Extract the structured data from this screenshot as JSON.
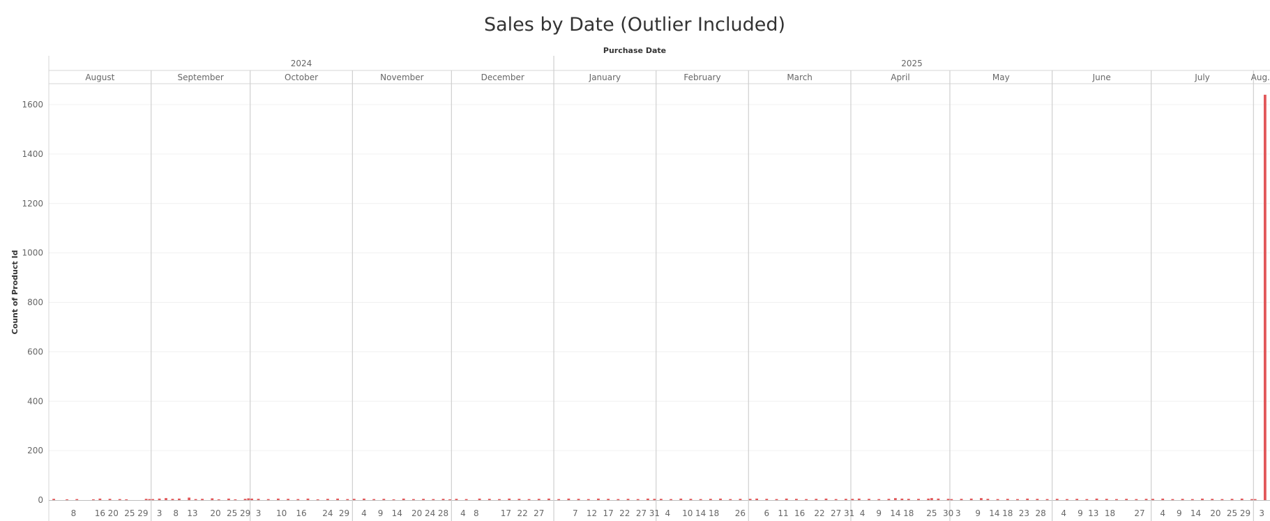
{
  "chart_data": {
    "type": "bar",
    "title": "Sales by Date (Outlier Included)",
    "column_header": "Purchase Date",
    "ylabel": "Count of Product Id",
    "ylim": [
      0,
      1720
    ],
    "yticks": [
      0,
      200,
      400,
      600,
      800,
      1000,
      1200,
      1400,
      1600
    ],
    "grid": true,
    "legend": "none",
    "bar_color": "#e15759",
    "years": [
      {
        "label": "2024",
        "first_month": 0,
        "last_month": 4
      },
      {
        "label": "2025",
        "first_month": 5,
        "last_month": 12
      }
    ],
    "months": [
      {
        "label": "August",
        "year": 2024,
        "month": 8,
        "start_day": 1,
        "end_day": 31,
        "day_ticks": [
          8,
          16,
          20,
          25,
          29
        ]
      },
      {
        "label": "September",
        "year": 2024,
        "month": 9,
        "start_day": 1,
        "end_day": 30,
        "day_ticks": [
          3,
          8,
          13,
          20,
          25,
          29
        ]
      },
      {
        "label": "October",
        "year": 2024,
        "month": 10,
        "start_day": 1,
        "end_day": 31,
        "day_ticks": [
          3,
          10,
          16,
          24,
          29
        ]
      },
      {
        "label": "November",
        "year": 2024,
        "month": 11,
        "start_day": 1,
        "end_day": 30,
        "day_ticks": [
          4,
          9,
          14,
          20,
          24,
          28
        ]
      },
      {
        "label": "December",
        "year": 2024,
        "month": 12,
        "start_day": 1,
        "end_day": 31,
        "day_ticks": [
          4,
          8,
          17,
          22,
          27
        ]
      },
      {
        "label": "January",
        "year": 2025,
        "month": 1,
        "start_day": 1,
        "end_day": 31,
        "day_ticks": [
          7,
          12,
          17,
          22,
          27,
          31
        ]
      },
      {
        "label": "February",
        "year": 2025,
        "month": 2,
        "start_day": 1,
        "end_day": 28,
        "day_ticks": [
          4,
          10,
          14,
          18,
          26
        ]
      },
      {
        "label": "March",
        "year": 2025,
        "month": 3,
        "start_day": 1,
        "end_day": 31,
        "day_ticks": [
          6,
          11,
          16,
          22,
          27,
          31
        ]
      },
      {
        "label": "April",
        "year": 2025,
        "month": 4,
        "start_day": 1,
        "end_day": 30,
        "day_ticks": [
          4,
          9,
          14,
          18,
          25,
          30
        ]
      },
      {
        "label": "May",
        "year": 2025,
        "month": 5,
        "start_day": 1,
        "end_day": 31,
        "day_ticks": [
          3,
          9,
          14,
          18,
          23,
          28
        ]
      },
      {
        "label": "June",
        "year": 2025,
        "month": 6,
        "start_day": 1,
        "end_day": 30,
        "day_ticks": [
          4,
          9,
          13,
          18,
          27
        ]
      },
      {
        "label": "July",
        "year": 2025,
        "month": 7,
        "start_day": 1,
        "end_day": 31,
        "day_ticks": [
          4,
          9,
          14,
          20,
          25,
          29
        ]
      },
      {
        "label": "Aug..",
        "year": 2025,
        "month": 8,
        "start_day": 1,
        "end_day": 5,
        "day_ticks": [
          3
        ]
      }
    ],
    "series": [
      {
        "values": [
          [
            [
              2,
              5
            ],
            [
              6,
              3
            ],
            [
              9,
              4
            ],
            [
              14,
              3
            ],
            [
              16,
              6
            ],
            [
              19,
              5
            ],
            [
              22,
              4
            ],
            [
              24,
              3
            ],
            [
              30,
              5
            ],
            [
              31,
              4
            ]
          ],
          [
            [
              1,
              4
            ],
            [
              3,
              6
            ],
            [
              5,
              8
            ],
            [
              7,
              5
            ],
            [
              9,
              6
            ],
            [
              12,
              10
            ],
            [
              14,
              4
            ],
            [
              16,
              5
            ],
            [
              19,
              7
            ],
            [
              21,
              3
            ],
            [
              24,
              6
            ],
            [
              26,
              3
            ],
            [
              29,
              5
            ],
            [
              30,
              7
            ]
          ],
          [
            [
              1,
              6
            ],
            [
              3,
              5
            ],
            [
              6,
              4
            ],
            [
              9,
              6
            ],
            [
              12,
              5
            ],
            [
              15,
              4
            ],
            [
              18,
              6
            ],
            [
              21,
              3
            ],
            [
              24,
              5
            ],
            [
              27,
              6
            ],
            [
              30,
              4
            ]
          ],
          [
            [
              1,
              5
            ],
            [
              4,
              6
            ],
            [
              7,
              4
            ],
            [
              10,
              5
            ],
            [
              13,
              3
            ],
            [
              16,
              6
            ],
            [
              19,
              4
            ],
            [
              22,
              5
            ],
            [
              25,
              4
            ],
            [
              28,
              5
            ],
            [
              30,
              3
            ]
          ],
          [
            [
              2,
              5
            ],
            [
              5,
              4
            ],
            [
              9,
              6
            ],
            [
              12,
              5
            ],
            [
              15,
              4
            ],
            [
              18,
              6
            ],
            [
              21,
              5
            ],
            [
              24,
              4
            ],
            [
              27,
              5
            ],
            [
              30,
              6
            ]
          ],
          [
            [
              2,
              4
            ],
            [
              5,
              6
            ],
            [
              8,
              5
            ],
            [
              11,
              4
            ],
            [
              14,
              6
            ],
            [
              17,
              5
            ],
            [
              20,
              4
            ],
            [
              23,
              5
            ],
            [
              26,
              4
            ],
            [
              29,
              6
            ],
            [
              31,
              5
            ]
          ],
          [
            [
              2,
              5
            ],
            [
              5,
              4
            ],
            [
              8,
              6
            ],
            [
              11,
              5
            ],
            [
              14,
              4
            ],
            [
              17,
              5
            ],
            [
              20,
              6
            ],
            [
              23,
              4
            ],
            [
              26,
              5
            ]
          ],
          [
            [
              1,
              5
            ],
            [
              3,
              6
            ],
            [
              6,
              5
            ],
            [
              9,
              4
            ],
            [
              12,
              6
            ],
            [
              15,
              5
            ],
            [
              18,
              4
            ],
            [
              21,
              5
            ],
            [
              24,
              6
            ],
            [
              27,
              4
            ],
            [
              30,
              5
            ]
          ],
          [
            [
              1,
              5
            ],
            [
              3,
              6
            ],
            [
              6,
              5
            ],
            [
              9,
              4
            ],
            [
              12,
              5
            ],
            [
              14,
              8
            ],
            [
              16,
              6
            ],
            [
              18,
              5
            ],
            [
              21,
              5
            ],
            [
              24,
              6
            ],
            [
              25,
              8
            ],
            [
              27,
              6
            ],
            [
              30,
              5
            ]
          ],
          [
            [
              1,
              4
            ],
            [
              4,
              5
            ],
            [
              7,
              6
            ],
            [
              10,
              8
            ],
            [
              12,
              5
            ],
            [
              15,
              4
            ],
            [
              18,
              5
            ],
            [
              21,
              4
            ],
            [
              24,
              6
            ],
            [
              27,
              5
            ],
            [
              30,
              4
            ]
          ],
          [
            [
              2,
              5
            ],
            [
              5,
              4
            ],
            [
              8,
              5
            ],
            [
              11,
              4
            ],
            [
              14,
              6
            ],
            [
              17,
              5
            ],
            [
              20,
              4
            ],
            [
              23,
              5
            ],
            [
              26,
              4
            ],
            [
              29,
              5
            ]
          ],
          [
            [
              1,
              5
            ],
            [
              4,
              6
            ],
            [
              7,
              4
            ],
            [
              10,
              5
            ],
            [
              13,
              4
            ],
            [
              16,
              6
            ],
            [
              19,
              5
            ],
            [
              22,
              4
            ],
            [
              25,
              5
            ],
            [
              28,
              6
            ],
            [
              31,
              4
            ]
          ],
          [
            [
              1,
              4
            ],
            [
              4,
              1640
            ]
          ]
        ]
      }
    ]
  }
}
